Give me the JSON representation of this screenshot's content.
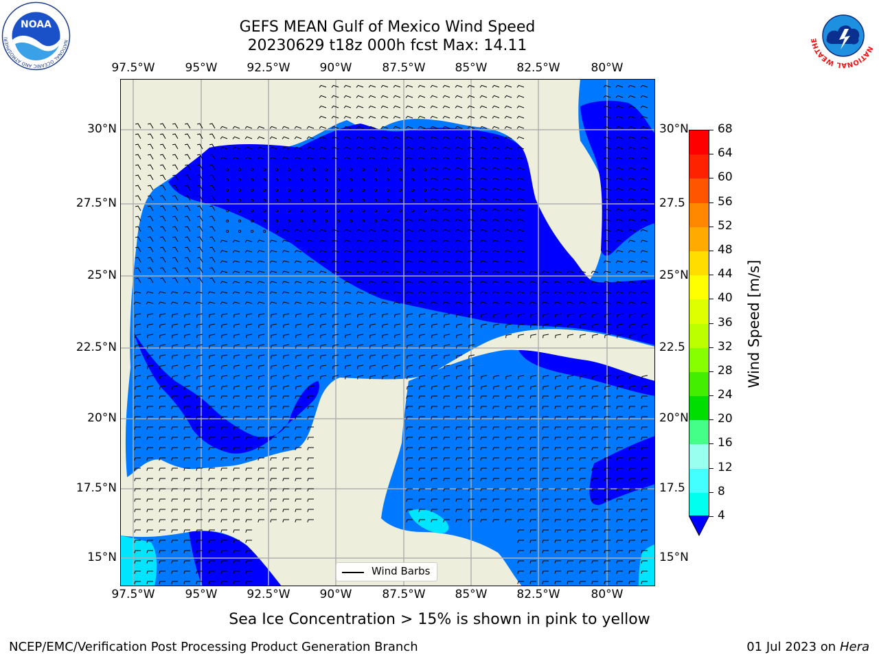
{
  "header": {
    "title_line1": "GEFS MEAN Gulf of Mexico Wind Speed",
    "title_line2": "20230629 t18z 000h fcst   Max: 14.11",
    "logo_left": "noa-logo",
    "logo_right": "nws-logo",
    "logo_left_ring_text": "NATIONAL OCEANIC AND ATMOSPHERIC ADMINISTRATION · U.S. DEPARTMENT OF COMMERCE",
    "logo_left_center_text": "NOAA",
    "logo_right_ring_text": "NATIONAL WEATHER SERVICE"
  },
  "map": {
    "lon_ticks": [
      "97.5°W",
      "95°W",
      "92.5°W",
      "90°W",
      "87.5°W",
      "85°W",
      "82.5°W",
      "80°W"
    ],
    "lat_ticks_left": [
      "30°N",
      "27.5°N",
      "25°N",
      "22.5°N",
      "20°N",
      "17.5°N",
      "15°N"
    ],
    "lat_ticks_right": [
      "30°N",
      "27.5",
      "25°N",
      "22.5",
      "20°N",
      "17.5",
      "15°N"
    ],
    "legend_label": "Wind Barbs",
    "colors": {
      "land": "#eeeedd",
      "ocean_0_4": "#0000ff",
      "ocean_4_8": "#0078ff",
      "ocean_8_12": "#00e5ff",
      "grid": "#b0b0b0"
    }
  },
  "colorbar": {
    "label": "Wind Speed [m/s]",
    "ticks": [
      "68",
      "64",
      "60",
      "56",
      "52",
      "48",
      "44",
      "40",
      "36",
      "32",
      "28",
      "24",
      "20",
      "16",
      "12",
      "8",
      "4"
    ],
    "colors": [
      "#ff0000",
      "#ff2200",
      "#ff5500",
      "#ff8800",
      "#ffaa00",
      "#ffdd00",
      "#ffff00",
      "#ddff00",
      "#bbff00",
      "#88ff00",
      "#44ee00",
      "#00dd00",
      "#44ff88",
      "#99ffee",
      "#44ffff",
      "#00ffee",
      "#0078ff"
    ],
    "under_color": "#0000ff"
  },
  "note": "Sea Ice Concentration > 15% is shown in pink to yellow",
  "footer": {
    "left": "NCEP/EMC/Verification Post Processing Product Generation Branch",
    "right_date": "01 Jul 2023 on ",
    "right_host": "Hera"
  }
}
